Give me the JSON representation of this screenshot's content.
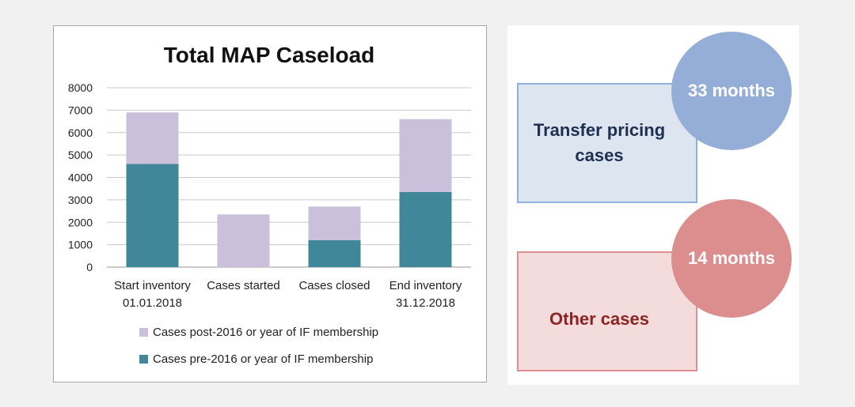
{
  "chart_data": {
    "type": "bar",
    "stacked": true,
    "title": "Total MAP Caseload",
    "categories": [
      [
        "Start inventory",
        "01.01.2018"
      ],
      [
        "Cases started"
      ],
      [
        "Cases closed"
      ],
      [
        "End inventory",
        "31.12.2018"
      ]
    ],
    "series": [
      {
        "name": "Cases pre-2016 or year of IF membership",
        "color": "#3f8799",
        "values": [
          4600,
          0,
          1200,
          3350
        ]
      },
      {
        "name": "Cases post-2016 or year of IF membership",
        "color": "#cac0dc",
        "values": [
          2300,
          2350,
          1500,
          3250
        ]
      }
    ],
    "ylim": [
      0,
      8000
    ],
    "yticks": [
      0,
      1000,
      2000,
      3000,
      4000,
      5000,
      6000,
      7000,
      8000
    ],
    "grid": true,
    "legend_position": "bottom"
  },
  "infographic": {
    "transfer_pricing": {
      "label_line1": "Transfer pricing",
      "label_line2": "cases",
      "duration": "33 months",
      "color": "#95aed7"
    },
    "other": {
      "label": "Other cases",
      "duration": "14 months",
      "color": "#dc8e8e"
    }
  }
}
